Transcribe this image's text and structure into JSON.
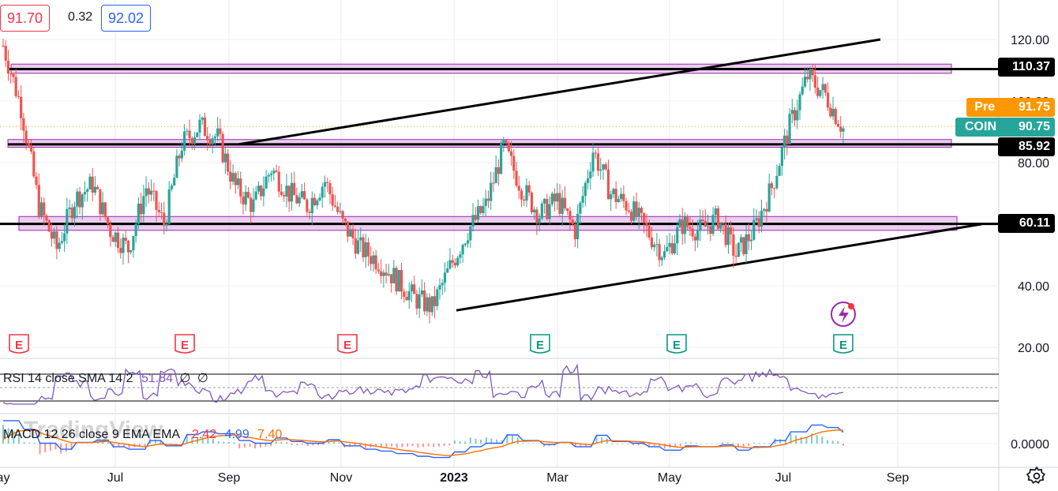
{
  "header": {
    "open_value": "91.70",
    "change_value": "0.32",
    "close_value": "92.02"
  },
  "price_tags": {
    "pre_label": "Pre",
    "pre_value": "91.75",
    "symbol_label": "COIN",
    "symbol_value": "90.75",
    "line_levels": [
      "110.37",
      "85.92",
      "60.11"
    ]
  },
  "rsi_pane": {
    "label": "RSI 14 close SMA 14 2",
    "value": "51.84",
    "extra1": "∅",
    "extra2": "∅"
  },
  "macd_pane": {
    "label": "MACD 12 26 close 9 EMA EMA",
    "hist": "-2.42",
    "macd": "4.99",
    "signal": "7.40",
    "axis_label": "0.0000"
  },
  "watermark": "TradingView",
  "colors": {
    "up": "#26a69a",
    "down": "#ef5350",
    "zone_fill": "#e1bee7",
    "zone_border": "#9c27b0",
    "rsi_line": "#7e57c2",
    "macd_line": "#2962ff",
    "signal_line": "#ff6d00",
    "pre_tag": "#ff9800",
    "symbol_tag": "#26a69a",
    "earnings_red": "#f23645",
    "earnings_green": "#089981"
  },
  "earnings_marker": "E",
  "chart_data": {
    "type": "candlestick",
    "symbol": "COIN",
    "y_axis_ticks": [
      "120.00",
      "100.00",
      "80.00",
      "40.00",
      "20.00"
    ],
    "x_axis_ticks": [
      "ay",
      "Jul",
      "Sep",
      "Nov",
      "2023",
      "Mar",
      "May",
      "Jul",
      "Sep"
    ],
    "ylim": [
      20,
      125
    ],
    "horizontal_levels": [
      110.37,
      85.92,
      60.11
    ],
    "zones": [
      [
        109,
        112
      ],
      [
        85,
        87.5
      ],
      [
        58,
        62.5
      ]
    ],
    "trendlines": [
      {
        "name": "upper",
        "from": [
          "Sep",
          85.92
        ],
        "to": [
          "Sep",
          120
        ]
      },
      {
        "name": "lower",
        "from": [
          "2023",
          32
        ],
        "to": [
          "Sep",
          60
        ]
      }
    ],
    "close_path": [
      [
        "ay",
        118
      ],
      [
        "ay",
        98
      ],
      [
        "ay",
        66
      ],
      [
        "ay",
        52
      ],
      [
        "ay",
        68
      ],
      [
        "ay",
        73
      ],
      [
        "Jul",
        58
      ],
      [
        "Jul",
        52
      ],
      [
        "Jul",
        72
      ],
      [
        "Jul",
        60
      ],
      [
        "Jul",
        86
      ],
      [
        "Jul",
        92
      ],
      [
        "Sep",
        88
      ],
      [
        "Sep",
        72
      ],
      [
        "Sep",
        66
      ],
      [
        "Sep",
        78
      ],
      [
        "Sep",
        70
      ],
      [
        "Sep",
        66
      ],
      [
        "Nov",
        74
      ],
      [
        "Nov",
        60
      ],
      [
        "Nov",
        52
      ],
      [
        "Nov",
        48
      ],
      [
        "Nov",
        42
      ],
      [
        "Nov",
        36
      ],
      [
        "2023",
        33
      ],
      [
        "2023",
        46
      ],
      [
        "2023",
        58
      ],
      [
        "2023",
        66
      ],
      [
        "2023",
        85
      ],
      [
        "2023",
        72
      ],
      [
        "Mar",
        63
      ],
      [
        "Mar",
        68
      ],
      [
        "Mar",
        58
      ],
      [
        "Mar",
        84
      ],
      [
        "Mar",
        70
      ],
      [
        "Mar",
        66
      ],
      [
        "May",
        58
      ],
      [
        "May",
        50
      ],
      [
        "May",
        60
      ],
      [
        "May",
        58
      ],
      [
        "May",
        62
      ],
      [
        "May",
        50
      ],
      [
        "Jul",
        58
      ],
      [
        "Jul",
        72
      ],
      [
        "Jul",
        92
      ],
      [
        "Jul",
        108
      ],
      [
        "Jul",
        102
      ],
      [
        "Jul",
        91
      ]
    ],
    "earnings": [
      {
        "position": "ay",
        "status": "reported-miss"
      },
      {
        "position": "Jul",
        "status": "reported-miss"
      },
      {
        "position": "Nov",
        "status": "reported-miss"
      },
      {
        "position": "2023",
        "status": "reported-beat"
      },
      {
        "position": "May",
        "status": "reported-beat"
      },
      {
        "position": "Jul",
        "status": "upcoming"
      }
    ]
  }
}
